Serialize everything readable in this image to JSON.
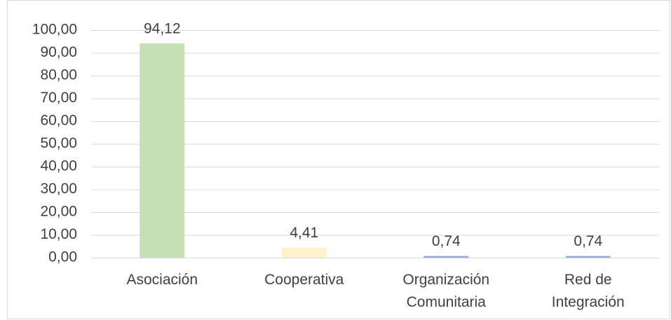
{
  "chart_data": {
    "type": "bar",
    "categories": [
      "Asociación",
      "Cooperativa",
      "Organización\nComunitaria",
      "Red de\nIntegración"
    ],
    "values": [
      94.12,
      4.41,
      0.74,
      0.74
    ],
    "value_labels": [
      "94,12",
      "4,41",
      "0,74",
      "0,74"
    ],
    "colors": [
      "#c5e0b4",
      "#fff2cc",
      "#8faadc",
      "#8faadc"
    ],
    "ylim": [
      0,
      100
    ],
    "yticks": [
      {
        "value": 0,
        "label": "0,00"
      },
      {
        "value": 10,
        "label": "10,00"
      },
      {
        "value": 20,
        "label": "20,00"
      },
      {
        "value": 30,
        "label": "30,00"
      },
      {
        "value": 40,
        "label": "40,00"
      },
      {
        "value": 50,
        "label": "50,00"
      },
      {
        "value": 60,
        "label": "60,00"
      },
      {
        "value": 70,
        "label": "70,00"
      },
      {
        "value": 80,
        "label": "80,00"
      },
      {
        "value": 90,
        "label": "90,00"
      },
      {
        "value": 100,
        "label": "100,00"
      }
    ],
    "grid": true
  }
}
